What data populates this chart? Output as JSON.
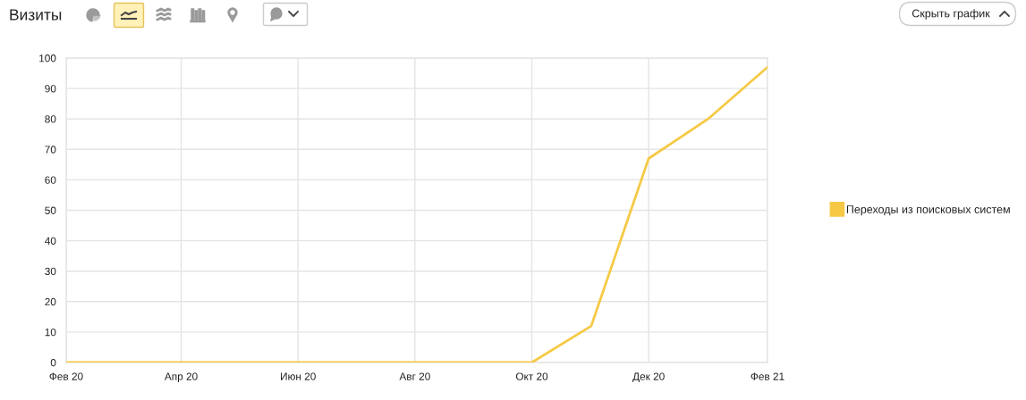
{
  "chart_data": {
    "type": "line",
    "title": "Визиты",
    "x": [
      "2020-02",
      "2020-03",
      "2020-04",
      "2020-05",
      "2020-06",
      "2020-07",
      "2020-08",
      "2020-09",
      "2020-10",
      "2020-11",
      "2020-12",
      "2021-01",
      "2021-02"
    ],
    "series": [
      {
        "name": "Переходы из поисковых систем",
        "color": "#f6c945",
        "values": [
          0,
          0,
          0,
          0,
          0,
          0,
          0,
          0,
          0,
          12,
          67,
          80,
          97
        ]
      }
    ],
    "xlim": [
      "2020-02",
      "2021-02"
    ],
    "xticks": [
      {
        "value": "2020-02",
        "label": "Фев 20"
      },
      {
        "value": "2020-04",
        "label": "Апр 20"
      },
      {
        "value": "2020-06",
        "label": "Июн 20"
      },
      {
        "value": "2020-08",
        "label": "Авг 20"
      },
      {
        "value": "2020-10",
        "label": "Окт 20"
      },
      {
        "value": "2020-12",
        "label": "Дек 20"
      },
      {
        "value": "2021-02",
        "label": "Фев 21"
      }
    ],
    "ylim": [
      0,
      100
    ],
    "yticks": [
      0,
      10,
      20,
      30,
      40,
      50,
      60,
      70,
      80,
      90,
      100
    ],
    "grid": true,
    "legend": "right",
    "line_style": "solid",
    "annotations": [
      "Скрыть график"
    ]
  }
}
